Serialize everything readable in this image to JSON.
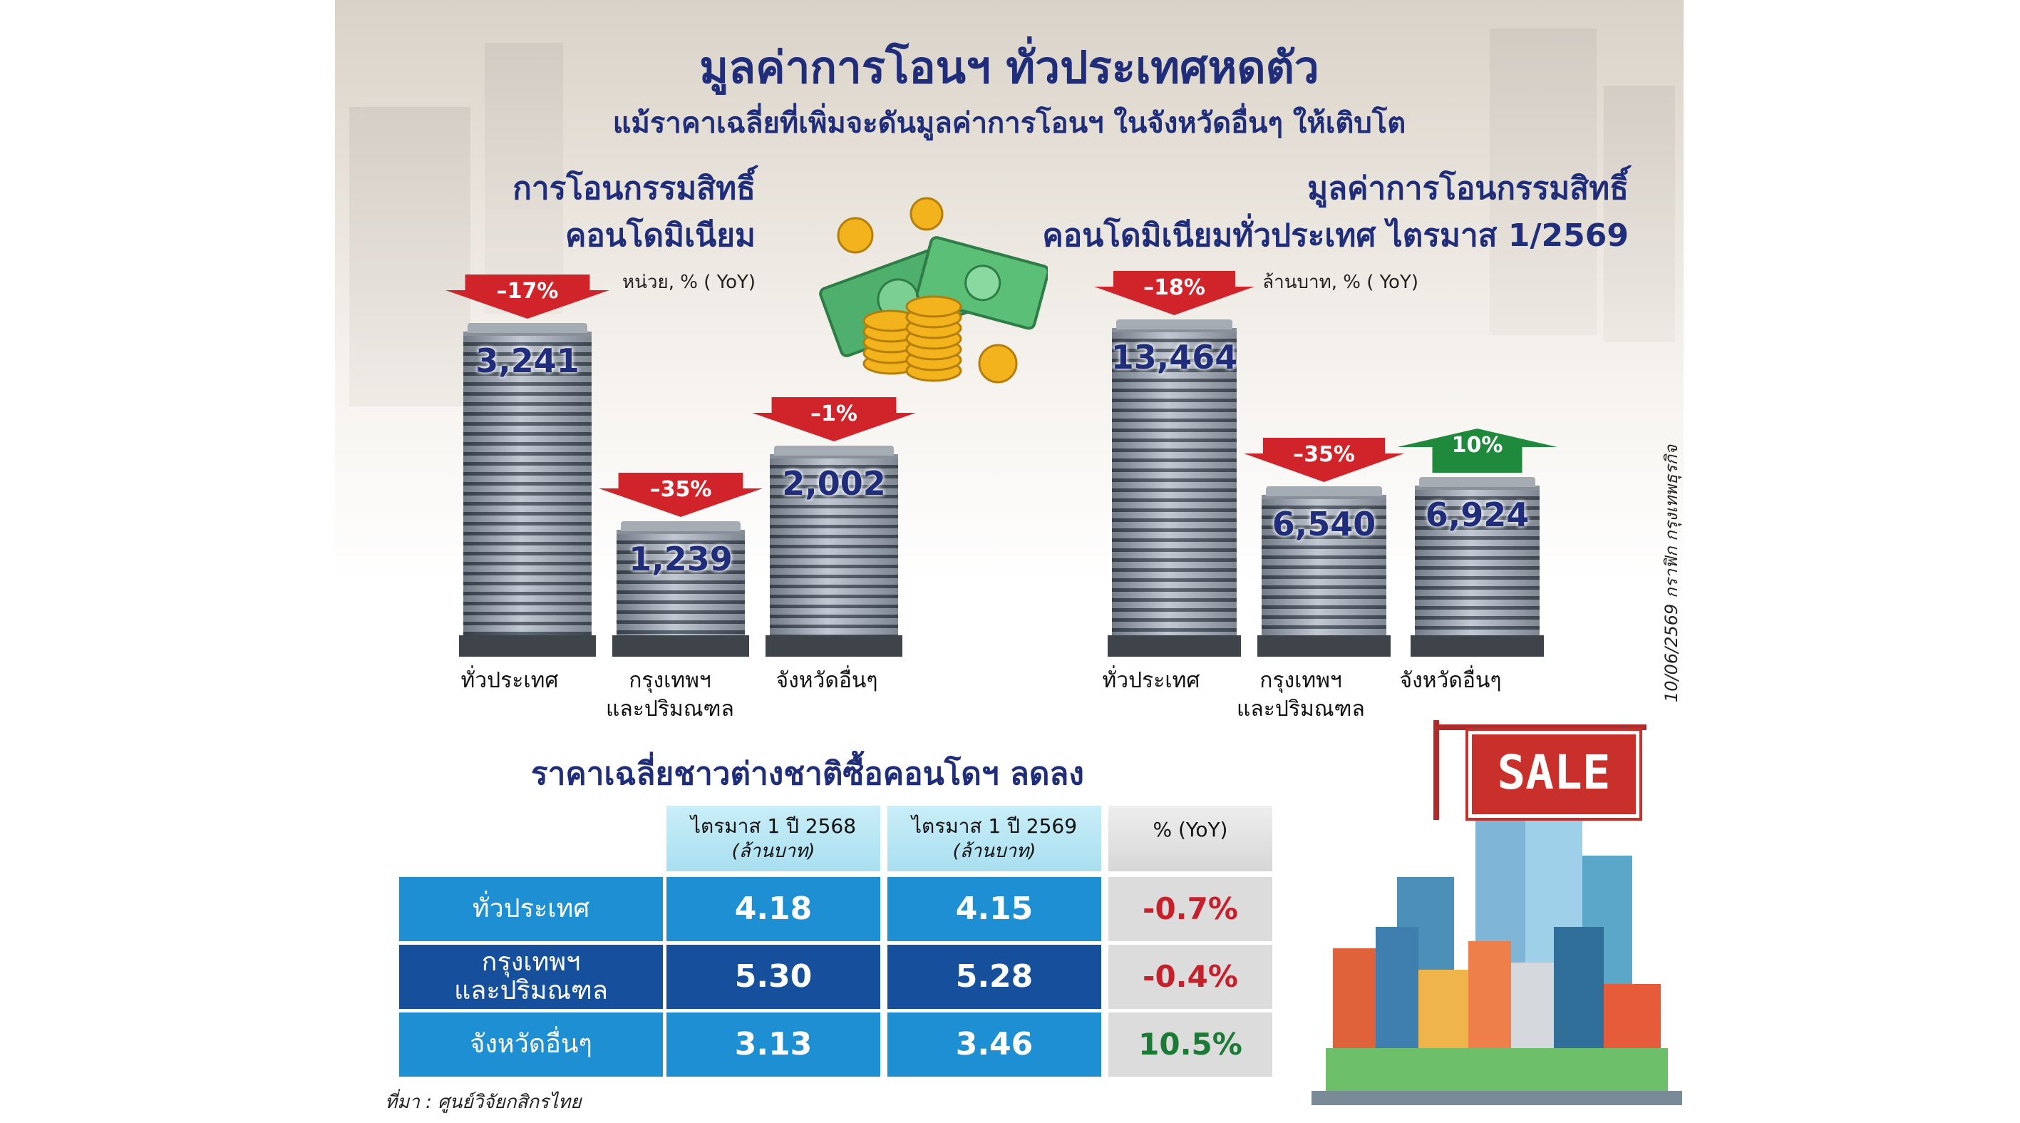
{
  "header": {
    "title": "มูลค่าการโอนฯ ทั่วประเทศหดตัว",
    "subtitle": "แม้ราคาเฉลี่ยที่เพิ่มจะดันมูลค่าการโอนฯ ในจังหวัดอื่นๆ ให้เติบโต"
  },
  "chart_data": [
    {
      "type": "bar",
      "title": "การโอนกรรมสิทธิ์ คอนโดมิเนียม",
      "unit": "หน่วย, % ( YoY)",
      "categories": [
        "ทั่วประเทศ",
        "กรุงเทพฯ และปริมณฑล",
        "จังหวัดอื่นๆ"
      ],
      "values": [
        3241,
        1239,
        2002
      ],
      "value_labels": [
        "3,241",
        "1,239",
        "2,002"
      ],
      "yoy_labels": [
        "–17%",
        "–35%",
        "–1%"
      ],
      "yoy": [
        -17,
        -35,
        -1
      ],
      "ylim": [
        0,
        3600
      ]
    },
    {
      "type": "bar",
      "title": "มูลค่าการโอนกรรมสิทธิ์ คอนโดมิเนียมทั่วประเทศ ไตรมาส 1/2569",
      "unit": "ล้านบาท, % ( YoY)",
      "categories": [
        "ทั่วประเทศ",
        "กรุงเทพฯ และปริมณฑล",
        "จังหวัดอื่นๆ"
      ],
      "values": [
        13464,
        6540,
        6924
      ],
      "value_labels": [
        "13,464",
        "6,540",
        "6,924"
      ],
      "yoy_labels": [
        "–18%",
        "–35%",
        "10%"
      ],
      "yoy": [
        -18,
        -35,
        10
      ],
      "ylim": [
        0,
        14800
      ]
    },
    {
      "type": "table",
      "title": "ราคาเฉลี่ยชาวต่างชาติซื้อคอนโดฯ ลดลง",
      "columns": [
        {
          "label": "ไตรมาส 1 ปี 2568",
          "sub": "(ล้านบาท)"
        },
        {
          "label": "ไตรมาส 1 ปี 2569",
          "sub": "(ล้านบาท)"
        },
        {
          "label": "% (YoY)",
          "sub": ""
        }
      ],
      "rows": [
        {
          "label": "ทั่วประเทศ",
          "v2568": "4.18",
          "v2569": "4.15",
          "yoy": "-0.7%"
        },
        {
          "label": "กรุงเทพฯ และปริมณฑล",
          "v2568": "5.30",
          "v2569": "5.28",
          "yoy": "-0.4%"
        },
        {
          "label": "จังหวัดอื่นๆ",
          "v2568": "3.13",
          "v2569": "3.46",
          "yoy": "10.5%"
        }
      ]
    }
  ],
  "left_chart": {
    "title_line1": "การโอนกรรมสิทธิ์",
    "title_line2": "คอนโดมิเนียม",
    "unit": "หน่วย, % ( YoY)",
    "labels": [
      {
        "line1": "ทั่วประเทศ",
        "line2": ""
      },
      {
        "line1": "กรุงเทพฯ",
        "line2": "และปริมณฑล"
      },
      {
        "line1": "จังหวัดอื่นๆ",
        "line2": ""
      }
    ]
  },
  "right_chart": {
    "title_line1": "มูลค่าการโอนกรรมสิทธิ์",
    "title_line2": "คอนโดมิเนียมทั่วประเทศ ไตรมาส 1/2569",
    "unit": "ล้านบาท, % ( YoY)",
    "labels": [
      {
        "line1": "ทั่วประเทศ",
        "line2": ""
      },
      {
        "line1": "กรุงเทพฯ",
        "line2": "และปริมณฑล"
      },
      {
        "line1": "จังหวัดอื่นๆ",
        "line2": ""
      }
    ]
  },
  "table": {
    "title": "ราคาเฉลี่ยชาวต่างชาติซื้อคอนโดฯ ลดลง",
    "h1": "ไตรมาส 1 ปี 2568",
    "h1_sub": "(ล้านบาท)",
    "h2": "ไตรมาส 1 ปี 2569",
    "h2_sub": "(ล้านบาท)",
    "h3": "% (YoY)",
    "r1_label": "ทั่วประเทศ",
    "r2_label_1": "กรุงเทพฯ",
    "r2_label_2": "และปริมณฑล",
    "r3_label": "จังหวัดอื่นๆ"
  },
  "footer": {
    "source": "ที่มา : ศูนย์วิจัยกสิกรไทย",
    "credit": "10/06/2569 กราฟิก กรุงเทพธุรกิจ",
    "sale_sign": "SALE"
  },
  "colors": {
    "title": "#1f2d7a",
    "down_arrow": "#d0232a",
    "up_arrow": "#1f8a3c",
    "table_blue": "#1f8fd3",
    "table_navy": "#164f9b",
    "neg": "#c8202a",
    "pos": "#1a7a36"
  }
}
